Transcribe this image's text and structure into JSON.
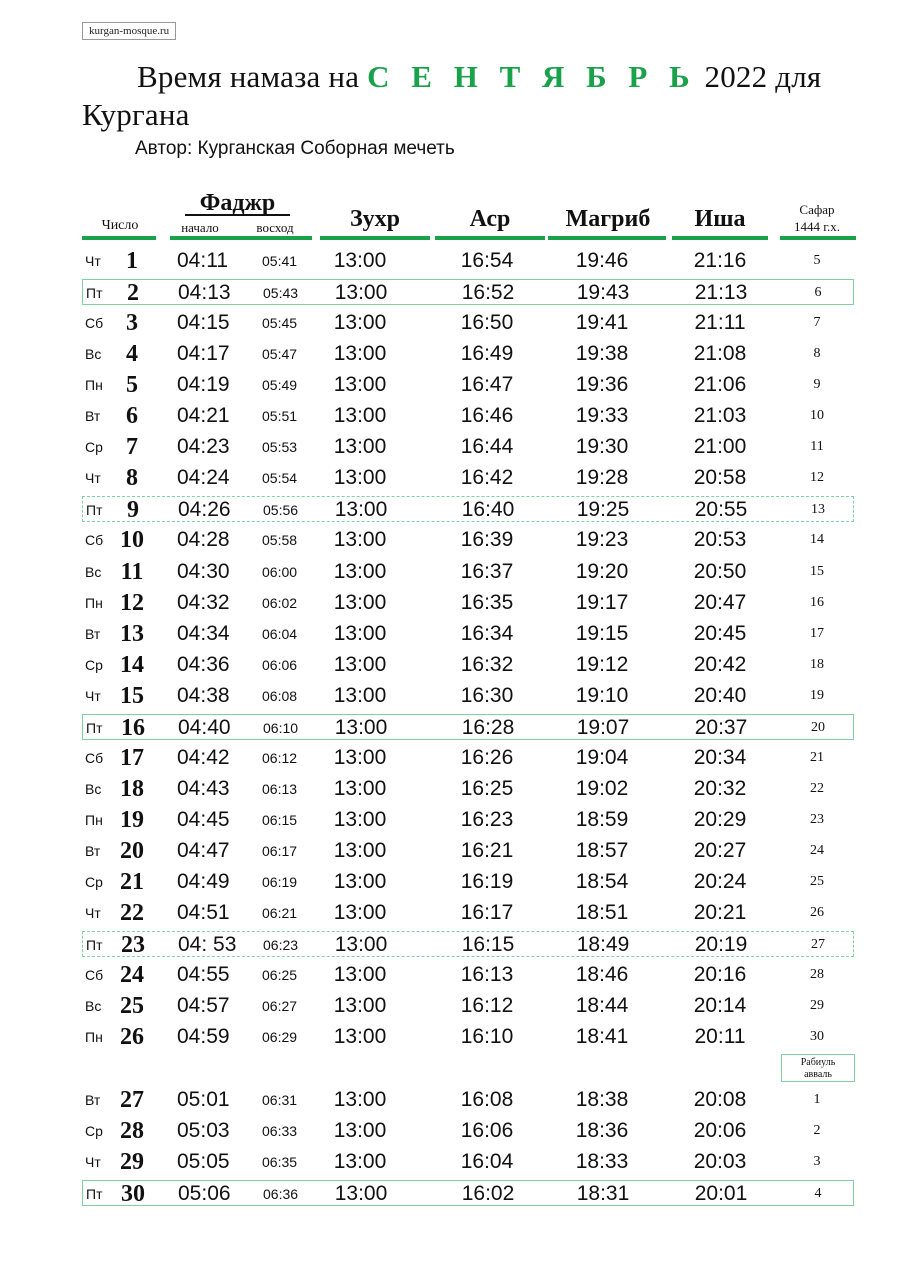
{
  "site": "kurgan-mosque.ru",
  "title": {
    "prefix": "Время намаза на ",
    "month": "С Е Н Т Я Б Р Ь",
    "suffix": " 2022 для",
    "line2": "Кургана"
  },
  "author": "Автор: Курганская Соборная мечеть",
  "headers": {
    "date": "Число",
    "fajr": "Фаджр",
    "fajr_begin": "начало",
    "sunrise": "восход",
    "zuhr": "Зухр",
    "asr": "Аср",
    "maghrib": "Магриб",
    "isha": "Иша",
    "hijri_month": "Сафар",
    "hijri_year": "1444 г.х."
  },
  "next_hijri_month": [
    "Рабиуль",
    "авваль"
  ],
  "colors": {
    "accent": "#1aa24a",
    "highlight_border": "#7fd1a0"
  },
  "rows": [
    {
      "wd": "Чт",
      "day": "1",
      "beg": "04:11",
      "rise": "05:41",
      "zuhr": "13:00",
      "asr": "16:54",
      "mag": "19:46",
      "isha": "21:16",
      "hij": "5",
      "hl": false
    },
    {
      "wd": "Пт",
      "day": "2",
      "beg": "04:13",
      "rise": "05:43",
      "zuhr": "13:00",
      "asr": "16:52",
      "mag": "19:43",
      "isha": "21:13",
      "hij": "6",
      "hl": true
    },
    {
      "wd": "Сб",
      "day": "3",
      "beg": "04:15",
      "rise": "05:45",
      "zuhr": "13:00",
      "asr": "16:50",
      "mag": "19:41",
      "isha": "21:11",
      "hij": "7",
      "hl": false
    },
    {
      "wd": "Вс",
      "day": "4",
      "beg": "04:17",
      "rise": "05:47",
      "zuhr": "13:00",
      "asr": "16:49",
      "mag": "19:38",
      "isha": "21:08",
      "hij": "8",
      "hl": false
    },
    {
      "wd": "Пн",
      "day": "5",
      "beg": "04:19",
      "rise": "05:49",
      "zuhr": "13:00",
      "asr": "16:47",
      "mag": "19:36",
      "isha": "21:06",
      "hij": "9",
      "hl": false
    },
    {
      "wd": "Вт",
      "day": "6",
      "beg": "04:21",
      "rise": "05:51",
      "zuhr": "13:00",
      "asr": "16:46",
      "mag": "19:33",
      "isha": "21:03",
      "hij": "10",
      "hl": false
    },
    {
      "wd": "Ср",
      "day": "7",
      "beg": "04:23",
      "rise": "05:53",
      "zuhr": "13:00",
      "asr": "16:44",
      "mag": "19:30",
      "isha": "21:00",
      "hij": "11",
      "hl": false
    },
    {
      "wd": "Чт",
      "day": "8",
      "beg": "04:24",
      "rise": "05:54",
      "zuhr": "13:00",
      "asr": "16:42",
      "mag": "19:28",
      "isha": "20:58",
      "hij": "12",
      "hl": false
    },
    {
      "wd": "Пт",
      "day": "9",
      "beg": "04:26",
      "rise": "05:56",
      "zuhr": "13:00",
      "asr": "16:40",
      "mag": "19:25",
      "isha": "20:55",
      "hij": "13",
      "hl": true
    },
    {
      "wd": "Сб",
      "day": "10",
      "beg": "04:28",
      "rise": "05:58",
      "zuhr": "13:00",
      "asr": "16:39",
      "mag": "19:23",
      "isha": "20:53",
      "hij": "14",
      "hl": false
    },
    {
      "wd": "Вс",
      "day": "11",
      "beg": "04:30",
      "rise": "06:00",
      "zuhr": "13:00",
      "asr": "16:37",
      "mag": "19:20",
      "isha": "20:50",
      "hij": "15",
      "hl": false
    },
    {
      "wd": "Пн",
      "day": "12",
      "beg": "04:32",
      "rise": "06:02",
      "zuhr": "13:00",
      "asr": "16:35",
      "mag": "19:17",
      "isha": "20:47",
      "hij": "16",
      "hl": false
    },
    {
      "wd": "Вт",
      "day": "13",
      "beg": "04:34",
      "rise": "06:04",
      "zuhr": "13:00",
      "asr": "16:34",
      "mag": "19:15",
      "isha": "20:45",
      "hij": "17",
      "hl": false
    },
    {
      "wd": "Ср",
      "day": "14",
      "beg": "04:36",
      "rise": "06:06",
      "zuhr": "13:00",
      "asr": "16:32",
      "mag": "19:12",
      "isha": "20:42",
      "hij": "18",
      "hl": false
    },
    {
      "wd": "Чт",
      "day": "15",
      "beg": "04:38",
      "rise": "06:08",
      "zuhr": "13:00",
      "asr": "16:30",
      "mag": "19:10",
      "isha": "20:40",
      "hij": "19",
      "hl": false
    },
    {
      "wd": "Пт",
      "day": "16",
      "beg": "04:40",
      "rise": "06:10",
      "zuhr": "13:00",
      "asr": "16:28",
      "mag": "19:07",
      "isha": "20:37",
      "hij": "20",
      "hl": true
    },
    {
      "wd": "Сб",
      "day": "17",
      "beg": "04:42",
      "rise": "06:12",
      "zuhr": "13:00",
      "asr": "16:26",
      "mag": "19:04",
      "isha": "20:34",
      "hij": "21",
      "hl": false
    },
    {
      "wd": "Вс",
      "day": "18",
      "beg": "04:43",
      "rise": "06:13",
      "zuhr": "13:00",
      "asr": "16:25",
      "mag": "19:02",
      "isha": "20:32",
      "hij": "22",
      "hl": false
    },
    {
      "wd": "Пн",
      "day": "19",
      "beg": "04:45",
      "rise": "06:15",
      "zuhr": "13:00",
      "asr": "16:23",
      "mag": "18:59",
      "isha": "20:29",
      "hij": "23",
      "hl": false
    },
    {
      "wd": "Вт",
      "day": "20",
      "beg": "04:47",
      "rise": "06:17",
      "zuhr": "13:00",
      "asr": "16:21",
      "mag": "18:57",
      "isha": "20:27",
      "hij": "24",
      "hl": false
    },
    {
      "wd": "Ср",
      "day": "21",
      "beg": "04:49",
      "rise": "06:19",
      "zuhr": "13:00",
      "asr": "16:19",
      "mag": "18:54",
      "isha": "20:24",
      "hij": "25",
      "hl": false
    },
    {
      "wd": "Чт",
      "day": "22",
      "beg": "04:51",
      "rise": "06:21",
      "zuhr": "13:00",
      "asr": "16:17",
      "mag": "18:51",
      "isha": "20:21",
      "hij": "26",
      "hl": false
    },
    {
      "wd": "Пт",
      "day": "23",
      "beg": "04: 53",
      "rise": "06:23",
      "zuhr": "13:00",
      "asr": "16:15",
      "mag": "18:49",
      "isha": "20:19",
      "hij": "27",
      "hl": true
    },
    {
      "wd": "Сб",
      "day": "24",
      "beg": "04:55",
      "rise": "06:25",
      "zuhr": "13:00",
      "asr": "16:13",
      "mag": "18:46",
      "isha": "20:16",
      "hij": "28",
      "hl": false
    },
    {
      "wd": "Вс",
      "day": "25",
      "beg": "04:57",
      "rise": "06:27",
      "zuhr": "13:00",
      "asr": "16:12",
      "mag": "18:44",
      "isha": "20:14",
      "hij": "29",
      "hl": false
    },
    {
      "wd": "Пн",
      "day": "26",
      "beg": "04:59",
      "rise": "06:29",
      "zuhr": "13:00",
      "asr": "16:10",
      "mag": "18:41",
      "isha": "20:11",
      "hij": "30",
      "hl": false
    },
    {
      "wd": "Вт",
      "day": "27",
      "beg": "05:01",
      "rise": "06:31",
      "zuhr": "13:00",
      "asr": "16:08",
      "mag": "18:38",
      "isha": "20:08",
      "hij": "1",
      "hl": false
    },
    {
      "wd": "Ср",
      "day": "28",
      "beg": "05:03",
      "rise": "06:33",
      "zuhr": "13:00",
      "asr": "16:06",
      "mag": "18:36",
      "isha": "20:06",
      "hij": "2",
      "hl": false
    },
    {
      "wd": "Чт",
      "day": "29",
      "beg": "05:05",
      "rise": "06:35",
      "zuhr": "13:00",
      "asr": "16:04",
      "mag": "18:33",
      "isha": "20:03",
      "hij": "3",
      "hl": false
    },
    {
      "wd": "Пт",
      "day": "30",
      "beg": "05:06",
      "rise": "06:36",
      "zuhr": "13:00",
      "asr": "16:02",
      "mag": "18:31",
      "isha": "20:01",
      "hij": "4",
      "hl": true
    }
  ]
}
